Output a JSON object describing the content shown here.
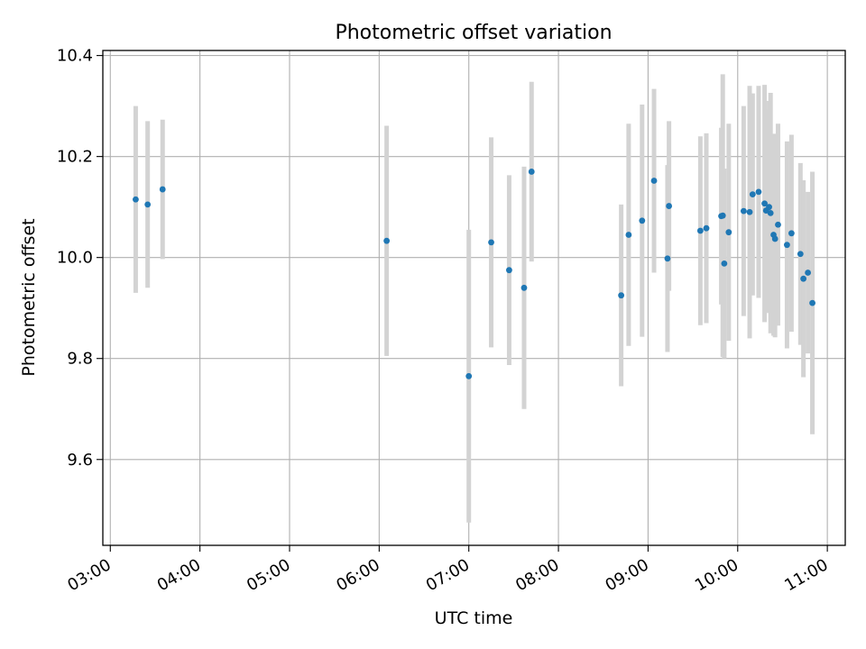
{
  "chart_data": {
    "type": "scatter",
    "title": "Photometric offset variation",
    "xlabel": "UTC time",
    "ylabel": "Photometric offset",
    "xlim": [
      "02:55",
      "11:12"
    ],
    "ylim": [
      9.43,
      10.41
    ],
    "grid": true,
    "x_ticks": [
      "03:00",
      "04:00",
      "05:00",
      "06:00",
      "07:00",
      "08:00",
      "09:00",
      "10:00",
      "11:00"
    ],
    "y_ticks": [
      "9.6",
      "9.8",
      "10.0",
      "10.2",
      "10.4"
    ],
    "series": [
      {
        "marker_color": "#1f77b4",
        "errorbar_color": "#d3d3d3",
        "points": [
          {
            "t": "03:17",
            "y": 10.115,
            "yerr": 0.185
          },
          {
            "t": "03:25",
            "y": 10.105,
            "yerr": 0.165
          },
          {
            "t": "03:35",
            "y": 10.135,
            "yerr": 0.138
          },
          {
            "t": "06:05",
            "y": 10.033,
            "yerr": 0.228
          },
          {
            "t": "07:00",
            "y": 9.765,
            "yerr": 0.29
          },
          {
            "t": "07:15",
            "y": 10.03,
            "yerr": 0.208
          },
          {
            "t": "07:27",
            "y": 9.975,
            "yerr": 0.188
          },
          {
            "t": "07:37",
            "y": 9.94,
            "yerr": 0.24
          },
          {
            "t": "07:42",
            "y": 10.17,
            "yerr": 0.178
          },
          {
            "t": "08:42",
            "y": 9.925,
            "yerr": 0.18
          },
          {
            "t": "08:47",
            "y": 10.045,
            "yerr": 0.22
          },
          {
            "t": "08:56",
            "y": 10.073,
            "yerr": 0.23
          },
          {
            "t": "09:04",
            "y": 10.152,
            "yerr": 0.182
          },
          {
            "t": "09:13",
            "y": 9.998,
            "yerr": 0.185
          },
          {
            "t": "09:14",
            "y": 10.102,
            "yerr": 0.168
          },
          {
            "t": "09:35",
            "y": 10.053,
            "yerr": 0.187
          },
          {
            "t": "09:39",
            "y": 10.058,
            "yerr": 0.188
          },
          {
            "t": "09:49",
            "y": 10.082,
            "yerr": 0.175
          },
          {
            "t": "09:50",
            "y": 10.083,
            "yerr": 0.28
          },
          {
            "t": "09:51",
            "y": 9.988,
            "yerr": 0.188
          },
          {
            "t": "09:54",
            "y": 10.05,
            "yerr": 0.215
          },
          {
            "t": "10:04",
            "y": 10.092,
            "yerr": 0.208
          },
          {
            "t": "10:08",
            "y": 10.09,
            "yerr": 0.25
          },
          {
            "t": "10:10",
            "y": 10.125,
            "yerr": 0.2
          },
          {
            "t": "10:14",
            "y": 10.13,
            "yerr": 0.21
          },
          {
            "t": "10:18",
            "y": 10.107,
            "yerr": 0.235
          },
          {
            "t": "10:19",
            "y": 10.093,
            "yerr": 0.2
          },
          {
            "t": "10:21",
            "y": 10.1,
            "yerr": 0.21
          },
          {
            "t": "10:22",
            "y": 10.088,
            "yerr": 0.238
          },
          {
            "t": "10:24",
            "y": 10.045,
            "yerr": 0.2
          },
          {
            "t": "10:25",
            "y": 10.037,
            "yerr": 0.195
          },
          {
            "t": "10:27",
            "y": 10.065,
            "yerr": 0.2
          },
          {
            "t": "10:33",
            "y": 10.025,
            "yerr": 0.205
          },
          {
            "t": "10:36",
            "y": 10.048,
            "yerr": 0.195
          },
          {
            "t": "10:42",
            "y": 10.007,
            "yerr": 0.18
          },
          {
            "t": "10:44",
            "y": 9.958,
            "yerr": 0.195
          },
          {
            "t": "10:47",
            "y": 9.97,
            "yerr": 0.16
          },
          {
            "t": "10:50",
            "y": 9.91,
            "yerr": 0.26
          }
        ]
      }
    ]
  }
}
